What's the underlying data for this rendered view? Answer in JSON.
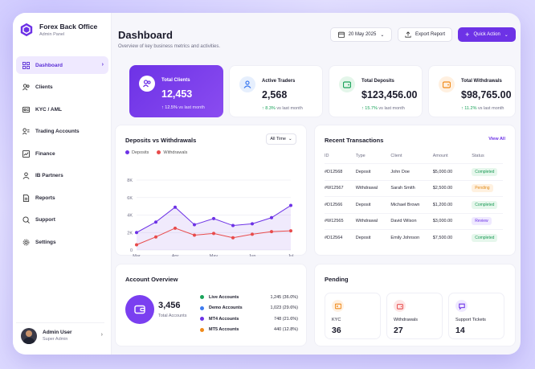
{
  "brand": {
    "title": "Forex Back Office",
    "subtitle": "Admin Panel"
  },
  "sidebar": {
    "items": [
      {
        "label": "Dashboard",
        "icon": "grid-icon"
      },
      {
        "label": "Clients",
        "icon": "users-icon"
      },
      {
        "label": "KYC / AML",
        "icon": "id-card-icon"
      },
      {
        "label": "Trading Accounts",
        "icon": "accounts-icon"
      },
      {
        "label": "Finance",
        "icon": "finance-icon"
      },
      {
        "label": "IB Partners",
        "icon": "partners-icon"
      },
      {
        "label": "Reports",
        "icon": "report-icon"
      },
      {
        "label": "Support",
        "icon": "support-icon"
      },
      {
        "label": "Settings",
        "icon": "gear-icon"
      }
    ],
    "active_index": 0,
    "user": {
      "name": "Admin User",
      "role": "Super Admin"
    }
  },
  "header": {
    "title": "Dashboard",
    "subtitle": "Overview of key business metrics and activities.",
    "date_label": "20 May 2025",
    "export_label": "Export Report",
    "quick_action_label": "Quick Action"
  },
  "stats": [
    {
      "label": "Total Clients",
      "value": "12,453",
      "change": "12.5%",
      "change_suffix": "vs last month"
    },
    {
      "label": "Active Traders",
      "value": "2,568",
      "change": "8.3%",
      "change_suffix": "vs last month"
    },
    {
      "label": "Total Deposits",
      "value": "$123,456.00",
      "change": "15.7%",
      "change_suffix": "vs last month"
    },
    {
      "label": "Total Withdrawals",
      "value": "$98,765.00",
      "change": "11.2%",
      "change_suffix": "vs last month"
    }
  ],
  "chart_panel": {
    "title": "Deposits vs Withdrawals",
    "range_label": "All Time"
  },
  "chart_data": {
    "type": "area",
    "title": "Deposits vs Withdrawals",
    "x": [
      "Mar",
      "",
      "Apr",
      "",
      "May",
      "",
      "Jun",
      "",
      "Jul"
    ],
    "tick_labels": [
      "Mar",
      "Apr",
      "May",
      "Jun",
      "Jul"
    ],
    "y_ticks": [
      "0",
      "2K",
      "4K",
      "6K",
      "8K"
    ],
    "ylim": [
      0,
      8000
    ],
    "series": [
      {
        "name": "Deposits",
        "color": "#6d32e6",
        "values": [
          2000,
          3200,
          4900,
          2900,
          3600,
          2800,
          3000,
          3700,
          5100
        ]
      },
      {
        "name": "Withdrawals",
        "color": "#e84b4b",
        "values": [
          600,
          1500,
          2500,
          1700,
          1900,
          1400,
          1800,
          2100,
          2200
        ]
      }
    ],
    "legend": "top-left",
    "grid": true
  },
  "transactions": {
    "title": "Recent Transactions",
    "view_all": "View All",
    "headers": [
      "ID",
      "Type",
      "Client",
      "Amount",
      "Status"
    ],
    "rows": [
      {
        "id": "#D12568",
        "type": "Deposit",
        "client": "John Doe",
        "amount": "$5,000.00",
        "status": "Completed"
      },
      {
        "id": "#W12567",
        "type": "Withdrawal",
        "client": "Sarah Smith",
        "amount": "$2,500.00",
        "status": "Pending"
      },
      {
        "id": "#D12566",
        "type": "Deposit",
        "client": "Michael Brown",
        "amount": "$1,200.00",
        "status": "Completed"
      },
      {
        "id": "#W12565",
        "type": "Withdrawal",
        "client": "David Wilson",
        "amount": "$3,000.00",
        "status": "Review"
      },
      {
        "id": "#D12564",
        "type": "Deposit",
        "client": "Emily Johnson",
        "amount": "$7,500.00",
        "status": "Completed"
      }
    ]
  },
  "account_overview": {
    "title": "Account Overview",
    "total": "3,456",
    "total_label": "Total Accounts",
    "items": [
      {
        "label": "Live Accounts",
        "value": "1,245 (36.0%)",
        "color": "#1aa35a"
      },
      {
        "label": "Demo Accounts",
        "value": "1,023 (29.6%)",
        "color": "#3d7bf0"
      },
      {
        "label": "MT4 Accounts",
        "value": "748 (21.6%)",
        "color": "#6d32e6"
      },
      {
        "label": "MT5 Accounts",
        "value": "440 (12.8%)",
        "color": "#f08a1a"
      }
    ]
  },
  "pending": {
    "title": "Pending",
    "items": [
      {
        "label": "KYC",
        "value": "36",
        "color": "#f08a1a"
      },
      {
        "label": "Withdrawals",
        "value": "27",
        "color": "#e84b4b"
      },
      {
        "label": "Support Tickets",
        "value": "14",
        "color": "#6d32e6"
      }
    ]
  }
}
